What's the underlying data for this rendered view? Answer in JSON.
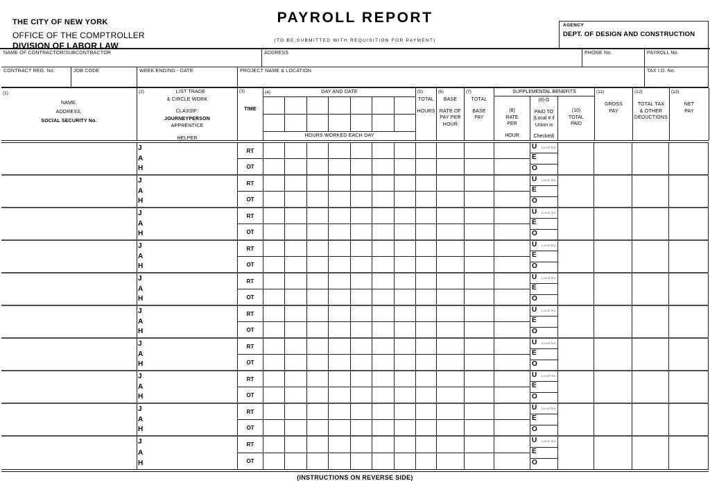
{
  "header": {
    "org_lines": [
      "THE CITY OF NEW YORK",
      "OFFICE OF THE COMPTROLLER",
      "DIVISION OF LABOR LAW"
    ],
    "title": "PAYROLL  REPORT",
    "subtitle": "(TO BE SUBMITTED WITH REQUISITION FOR PAYMENT)",
    "agency_label": "AGENCY",
    "agency_value": "DEPT. OF DESIGN AND CONSTRUCTION"
  },
  "info": {
    "contractor_label": "NAME OF CONTRACTOR/SUBCONTRACTOR",
    "address_label": "ADDRESS",
    "phone_label": "PHONE  No.",
    "payroll_no_label": "PAYROLL No.",
    "contract_reg_label": "CONTRACT REG. No.",
    "job_code_label": "JOB CODE",
    "week_ending_label": "WEEK ENDING - DATE",
    "project_label": "PROJECT NAME & LOCATION",
    "tax_id_label": "TAX I.D. No."
  },
  "table": {
    "row_count": 10,
    "col1": {
      "num": "(1)",
      "line1": "NAME,",
      "line2": "ADDRESS,",
      "line3": "SOCIAL SECURITY No."
    },
    "col2": {
      "num": "(2)",
      "title": "LIST TRADE",
      "line1": "& CIRCLE WORK",
      "line2": "CLASSIF:",
      "line3": "JOURNEYPERSON",
      "line4": "APPRENTICE",
      "line5": "HELPER"
    },
    "col3": {
      "num": "(3)",
      "label": "TIME"
    },
    "col4": {
      "num": "(4)",
      "title": "DAY AND DATE",
      "bottom": "HOURS WORKED EACH DAY"
    },
    "col5": {
      "num": "(5)",
      "line1": "TOTAL",
      "line2": "HOURS"
    },
    "col6": {
      "num": "(6)",
      "line1": "BASE",
      "line2": "RATE OF",
      "line3": "PAY PER",
      "line4": "HOUR"
    },
    "col7": {
      "num": "(7)",
      "line1": "TOTAL",
      "line2": "BASE",
      "line3": "PAY"
    },
    "supp_title": "SUPPLEMENTAL BENEFITS",
    "col8": {
      "num": "(8)",
      "line1": "RATE",
      "line2": "PER",
      "line3": "HOUR"
    },
    "col9": {
      "num": "(9) O",
      "line1": "PAID TO",
      "line2": "(Local # if",
      "line3": "Union is",
      "line4": "Checked)"
    },
    "col10": {
      "num": "(10)",
      "line1": "TOTAL",
      "line2": "PAID"
    },
    "col11": {
      "num": "(11)",
      "line1": "GROSS",
      "line2": "PAY"
    },
    "col12": {
      "num": "(12)",
      "line1": "TOTAL TAX",
      "line2": "& OTHER",
      "line3": "DEDUCTIONS"
    },
    "col13": {
      "num": "(13)",
      "line1": "NET",
      "line2": "PAY"
    },
    "row_labels": {
      "trade_letters": [
        "J",
        "A",
        "H"
      ],
      "rt": "RT",
      "ot": "OT",
      "paid_to_letters": [
        "U",
        "E",
        "O"
      ],
      "local_no": "Local No."
    }
  },
  "footer": {
    "note": "(INSTRUCTIONS ON REVERSE SIDE)"
  }
}
